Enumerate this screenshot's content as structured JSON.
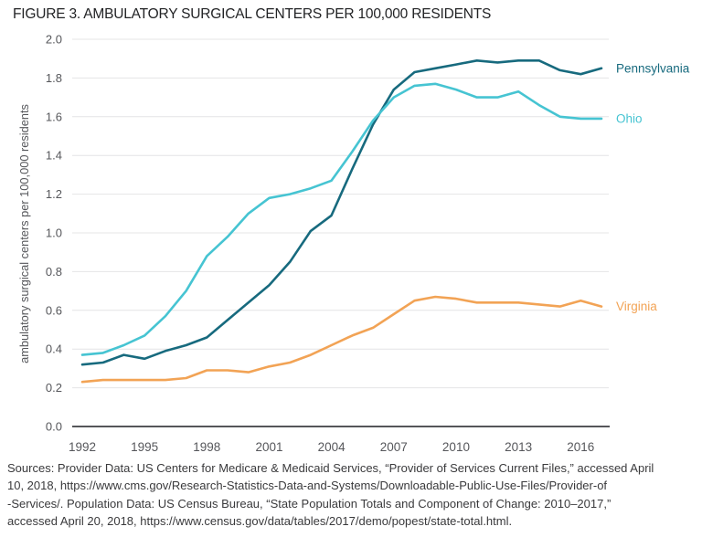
{
  "title": "FIGURE 3. AMBULATORY SURGICAL CENTERS PER 100,000 RESIDENTS",
  "chart_data": {
    "type": "line",
    "title": "FIGURE 3. AMBULATORY SURGICAL CENTERS PER 100,000 RESIDENTS",
    "xlabel": "",
    "ylabel": "ambulatory surgical centers per 100,000 residents",
    "ylim": [
      0.0,
      2.0
    ],
    "ytick_step": 0.2,
    "yticks": [
      "0.0",
      "0.2",
      "0.4",
      "0.6",
      "0.8",
      "1.0",
      "1.2",
      "1.4",
      "1.6",
      "1.8",
      "2.0"
    ],
    "xticks": [
      1992,
      1995,
      1998,
      2001,
      2004,
      2007,
      2010,
      2013,
      2016
    ],
    "x": [
      1992,
      1993,
      1994,
      1995,
      1996,
      1997,
      1998,
      1999,
      2000,
      2001,
      2002,
      2003,
      2004,
      2005,
      2006,
      2007,
      2008,
      2009,
      2010,
      2011,
      2012,
      2013,
      2014,
      2015,
      2016,
      2017
    ],
    "grid": true,
    "legend_position": "right-of-line-ends",
    "series": [
      {
        "name": "Pennsylvania",
        "color": "#176a7e",
        "values": [
          0.32,
          0.33,
          0.37,
          0.35,
          0.39,
          0.42,
          0.46,
          0.55,
          0.64,
          0.73,
          0.85,
          1.01,
          1.09,
          1.33,
          1.56,
          1.74,
          1.83,
          1.85,
          1.87,
          1.89,
          1.88,
          1.89,
          1.89,
          1.84,
          1.82,
          1.85
        ]
      },
      {
        "name": "Ohio",
        "color": "#46c4d2",
        "values": [
          0.37,
          0.38,
          0.42,
          0.47,
          0.57,
          0.7,
          0.88,
          0.98,
          1.1,
          1.18,
          1.2,
          1.23,
          1.27,
          1.42,
          1.58,
          1.7,
          1.76,
          1.77,
          1.74,
          1.7,
          1.7,
          1.73,
          1.66,
          1.6,
          1.59,
          1.59
        ]
      },
      {
        "name": "Virginia",
        "color": "#f2a355",
        "values": [
          0.23,
          0.24,
          0.24,
          0.24,
          0.24,
          0.25,
          0.29,
          0.29,
          0.28,
          0.31,
          0.33,
          0.37,
          0.42,
          0.47,
          0.51,
          0.58,
          0.65,
          0.67,
          0.66,
          0.64,
          0.64,
          0.64,
          0.63,
          0.62,
          0.65,
          0.62
        ]
      }
    ]
  },
  "colors": {
    "grid": "#e4e4e6",
    "axis": "#55565a",
    "tick_text": "#56575b",
    "title_text": "#222325",
    "source_text": "#3a3a3c"
  },
  "source_lines": [
    "Sources: Provider Data: US Centers for Medicare & Medicaid Services, “Provider of Services Current Files,” accessed April",
    "10, 2018, https://www.cms.gov/Research-Statistics-Data-and-Systems/Downloadable-Public-Use-Files/Provider-of",
    "-Services/. Population Data: US Census Bureau, “State Population Totals and Component of Change: 2010–2017,”",
    "accessed April 20, 2018, https://www.census.gov/data/tables/2017/demo/popest/state-total.html."
  ]
}
